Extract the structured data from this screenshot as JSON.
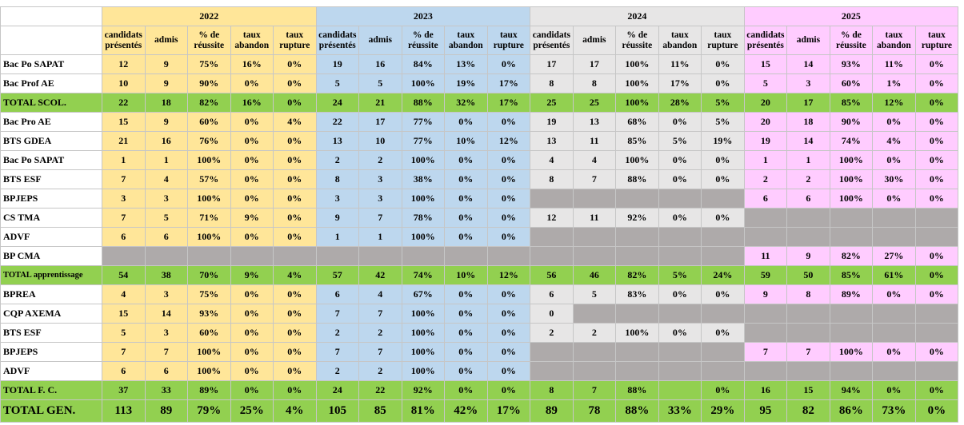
{
  "table": {
    "years": [
      "2022",
      "2023",
      "2024",
      "2025"
    ],
    "columns": [
      "candidats présentés",
      "admis",
      "% de réussite",
      "taux abandon",
      "taux rupture"
    ],
    "rows": [
      {
        "label": "Bac Po SAPAT",
        "cells": [
          [
            "12",
            "9",
            "75%",
            "16%",
            "0%"
          ],
          [
            "19",
            "16",
            "84%",
            "13%",
            "0%"
          ],
          [
            "17",
            "17",
            "100%",
            "11%",
            "0%"
          ],
          [
            "15",
            "14",
            "93%",
            "11%",
            "0%"
          ]
        ]
      },
      {
        "label": "Bac Prof AE",
        "cells": [
          [
            "10",
            "9",
            "90%",
            "0%",
            "0%"
          ],
          [
            "5",
            "5",
            "100%",
            "19%",
            "17%"
          ],
          [
            "8",
            "8",
            "100%",
            "17%",
            "0%"
          ],
          [
            "5",
            "3",
            "60%",
            "1%",
            "0%"
          ]
        ]
      },
      {
        "label": "TOTAL SCOL.",
        "cells": [
          [
            "22",
            "18",
            "82%",
            "16%",
            "0%"
          ],
          [
            "24",
            "21",
            "88%",
            "32%",
            "17%"
          ],
          [
            "25",
            "25",
            "100%",
            "28%",
            "5%"
          ],
          [
            "20",
            "17",
            "85%",
            "12%",
            "0%"
          ]
        ]
      },
      {
        "label": "Bac Pro AE",
        "cells": [
          [
            "15",
            "9",
            "60%",
            "0%",
            "4%"
          ],
          [
            "22",
            "17",
            "77%",
            "0%",
            "0%"
          ],
          [
            "19",
            "13",
            "68%",
            "0%",
            "5%"
          ],
          [
            "20",
            "18",
            "90%",
            "0%",
            "0%"
          ]
        ]
      },
      {
        "label": "BTS GDEA",
        "cells": [
          [
            "21",
            "16",
            "76%",
            "0%",
            "0%"
          ],
          [
            "13",
            "10",
            "77%",
            "10%",
            "12%"
          ],
          [
            "13",
            "11",
            "85%",
            "5%",
            "19%"
          ],
          [
            "19",
            "14",
            "74%",
            "4%",
            "0%"
          ]
        ]
      },
      {
        "label": "Bac Po SAPAT",
        "cells": [
          [
            "1",
            "1",
            "100%",
            "0%",
            "0%"
          ],
          [
            "2",
            "2",
            "100%",
            "0%",
            "0%"
          ],
          [
            "4",
            "4",
            "100%",
            "0%",
            "0%"
          ],
          [
            "1",
            "1",
            "100%",
            "0%",
            "0%"
          ]
        ]
      },
      {
        "label": "BTS ESF",
        "cells": [
          [
            "7",
            "4",
            "57%",
            "0%",
            "0%"
          ],
          [
            "8",
            "3",
            "38%",
            "0%",
            "0%"
          ],
          [
            "8",
            "7",
            "88%",
            "0%",
            "0%"
          ],
          [
            "2",
            "2",
            "100%",
            "30%",
            "0%"
          ]
        ]
      },
      {
        "label": "BPJEPS",
        "cells": [
          [
            "3",
            "3",
            "100%",
            "0%",
            "0%"
          ],
          [
            "3",
            "3",
            "100%",
            "0%",
            "0%"
          ],
          [
            null,
            null,
            null,
            null,
            null
          ],
          [
            "6",
            "6",
            "100%",
            "0%",
            "0%"
          ]
        ]
      },
      {
        "label": "CS TMA",
        "cells": [
          [
            "7",
            "5",
            "71%",
            "9%",
            "0%"
          ],
          [
            "9",
            "7",
            "78%",
            "0%",
            "0%"
          ],
          [
            "12",
            "11",
            "92%",
            "0%",
            "0%"
          ],
          [
            null,
            null,
            null,
            null,
            null
          ]
        ]
      },
      {
        "label": "ADVF",
        "cells": [
          [
            "6",
            "6",
            "100%",
            "0%",
            "0%"
          ],
          [
            "1",
            "1",
            "100%",
            "0%",
            "0%"
          ],
          [
            null,
            null,
            null,
            null,
            null
          ],
          [
            null,
            null,
            null,
            null,
            null
          ]
        ]
      },
      {
        "label": "BP CMA",
        "cells": [
          [
            null,
            null,
            null,
            null,
            null
          ],
          [
            null,
            null,
            null,
            null,
            null
          ],
          [
            null,
            null,
            null,
            null,
            null
          ],
          [
            "11",
            "9",
            "82%",
            "27%",
            "0%"
          ]
        ]
      },
      {
        "label": "TOTAL apprentissage",
        "cells": [
          [
            "54",
            "38",
            "70%",
            "9%",
            "4%"
          ],
          [
            "57",
            "42",
            "74%",
            "10%",
            "12%"
          ],
          [
            "56",
            "46",
            "82%",
            "5%",
            "24%"
          ],
          [
            "59",
            "50",
            "85%",
            "61%",
            "0%"
          ]
        ]
      },
      {
        "label": "BPREA",
        "cells": [
          [
            "4",
            "3",
            "75%",
            "0%",
            "0%"
          ],
          [
            "6",
            "4",
            "67%",
            "0%",
            "0%"
          ],
          [
            "6",
            "5",
            "83%",
            "0%",
            "0%"
          ],
          [
            "9",
            "8",
            "89%",
            "0%",
            "0%"
          ]
        ]
      },
      {
        "label": "CQP AXEMA",
        "cells": [
          [
            "15",
            "14",
            "93%",
            "0%",
            "0%"
          ],
          [
            "7",
            "7",
            "100%",
            "0%",
            "0%"
          ],
          [
            "0",
            null,
            null,
            null,
            null
          ],
          [
            null,
            null,
            null,
            null,
            null
          ]
        ]
      },
      {
        "label": "BTS ESF",
        "cells": [
          [
            "5",
            "3",
            "60%",
            "0%",
            "0%"
          ],
          [
            "2",
            "2",
            "100%",
            "0%",
            "0%"
          ],
          [
            "2",
            "2",
            "100%",
            "0%",
            "0%"
          ],
          [
            null,
            null,
            null,
            null,
            null
          ]
        ]
      },
      {
        "label": "BPJEPS",
        "cells": [
          [
            "7",
            "7",
            "100%",
            "0%",
            "0%"
          ],
          [
            "7",
            "7",
            "100%",
            "0%",
            "0%"
          ],
          [
            null,
            null,
            null,
            null,
            null
          ],
          [
            "7",
            "7",
            "100%",
            "0%",
            "0%"
          ]
        ]
      },
      {
        "label": "ADVF",
        "cells": [
          [
            "6",
            "6",
            "100%",
            "0%",
            "0%"
          ],
          [
            "2",
            "2",
            "100%",
            "0%",
            "0%"
          ],
          [
            null,
            null,
            null,
            null,
            null
          ],
          [
            null,
            null,
            null,
            null,
            null
          ]
        ]
      },
      {
        "label": "TOTAL F. C.",
        "cells": [
          [
            "37",
            "33",
            "89%",
            "0%",
            "0%"
          ],
          [
            "24",
            "22",
            "92%",
            "0%",
            "0%"
          ],
          [
            "8",
            "7",
            "88%",
            null,
            "0%"
          ],
          [
            "16",
            "15",
            "94%",
            "0%",
            "0%"
          ]
        ]
      },
      {
        "label": "TOTAL GEN.",
        "cells": [
          [
            "113",
            "89",
            "79%",
            "25%",
            "4%"
          ],
          [
            "105",
            "85",
            "81%",
            "42%",
            "17%"
          ],
          [
            "89",
            "78",
            "88%",
            "33%",
            "29%"
          ],
          [
            "95",
            "82",
            "86%",
            "73%",
            "0%"
          ]
        ]
      }
    ]
  }
}
